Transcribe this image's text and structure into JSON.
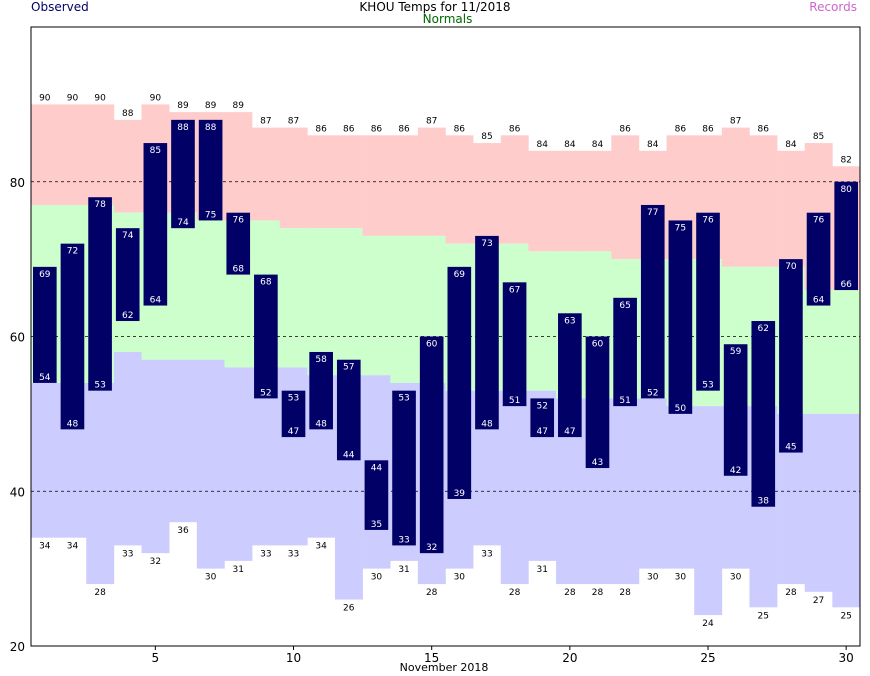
{
  "header": {
    "title": "KHOU Temps for 11/2018",
    "observed_label": "Observed",
    "normals_label": "Normals",
    "records_label": "Records"
  },
  "colors": {
    "observed": "#000066",
    "normals_text": "#006600",
    "records_text": "#cc66cc",
    "record_band": "#ffcccc",
    "normal_band": "#ccffcc",
    "low_band": "#ccccff",
    "grid": "#000000"
  },
  "chart_data": {
    "type": "bar",
    "title": "KHOU Temps for 11/2018",
    "xlabel": "November 2018",
    "ylabel": "",
    "ylim": [
      20,
      100
    ],
    "xlim": [
      0.5,
      30.5
    ],
    "y_ticks": [
      20,
      40,
      60,
      80
    ],
    "x_ticks": [
      5,
      10,
      15,
      20,
      25,
      30
    ],
    "grid": "dashed horizontal at 40, 60, 80",
    "days": [
      1,
      2,
      3,
      4,
      5,
      6,
      7,
      8,
      9,
      10,
      11,
      12,
      13,
      14,
      15,
      16,
      17,
      18,
      19,
      20,
      21,
      22,
      23,
      24,
      25,
      26,
      27,
      28,
      29,
      30
    ],
    "observed_high": [
      69,
      72,
      78,
      74,
      85,
      88,
      88,
      76,
      68,
      53,
      58,
      57,
      44,
      53,
      60,
      69,
      73,
      67,
      52,
      63,
      60,
      65,
      77,
      75,
      76,
      59,
      62,
      70,
      76,
      80
    ],
    "observed_low": [
      54,
      48,
      53,
      62,
      64,
      74,
      75,
      68,
      52,
      47,
      48,
      44,
      35,
      33,
      32,
      39,
      48,
      51,
      47,
      47,
      43,
      51,
      52,
      50,
      53,
      42,
      38,
      45,
      64,
      66
    ],
    "normal_high": [
      77,
      77,
      77,
      76,
      76,
      76,
      75,
      75,
      75,
      74,
      74,
      74,
      73,
      73,
      73,
      72,
      72,
      72,
      71,
      71,
      71,
      70,
      70,
      70,
      70,
      69,
      69,
      69,
      66,
      66
    ],
    "normal_low": [
      54,
      54,
      54,
      58,
      57,
      57,
      57,
      56,
      56,
      56,
      55,
      55,
      55,
      54,
      54,
      53,
      53,
      53,
      53,
      52,
      52,
      52,
      52,
      51,
      51,
      51,
      51,
      50,
      50,
      50
    ],
    "record_high": [
      90,
      90,
      90,
      88,
      90,
      89,
      89,
      89,
      87,
      87,
      86,
      86,
      86,
      86,
      87,
      86,
      85,
      86,
      84,
      84,
      84,
      86,
      84,
      86,
      86,
      87,
      86,
      84,
      85,
      82
    ],
    "record_low": [
      34,
      34,
      28,
      33,
      32,
      36,
      30,
      31,
      33,
      33,
      34,
      26,
      30,
      31,
      28,
      30,
      33,
      28,
      31,
      28,
      28,
      28,
      30,
      30,
      24,
      30,
      25,
      28,
      27,
      25
    ]
  }
}
